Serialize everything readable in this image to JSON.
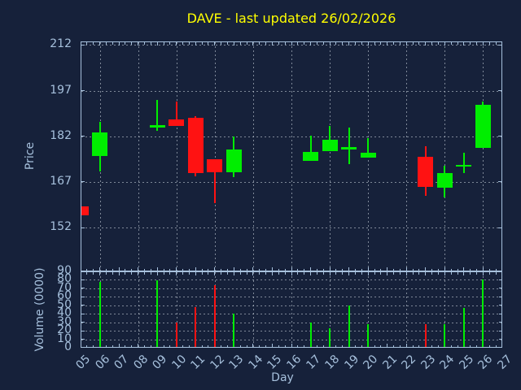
{
  "title": "DAVE - last updated 26/02/2026",
  "colors": {
    "background": "#16213a",
    "axis": "#a6c0dc",
    "grid": "#c3ccd6",
    "title": "#ffff00",
    "up": "#00ee00",
    "down": "#ff1212"
  },
  "chart_data": {
    "type": "candlestick+volume",
    "title": "DAVE - last updated 26/02/2026",
    "xlabel": "Day",
    "xlim": [
      5,
      27
    ],
    "x_ticks": [
      "05",
      "06",
      "07",
      "08",
      "09",
      "10",
      "11",
      "12",
      "13",
      "14",
      "15",
      "16",
      "17",
      "18",
      "19",
      "20",
      "21",
      "22",
      "23",
      "24",
      "25",
      "26",
      "27"
    ],
    "x_gridline_days": [
      6,
      8,
      10,
      12,
      14,
      16,
      18,
      20,
      22,
      24,
      26
    ],
    "price_axis": {
      "label": "Price",
      "ticks": [
        212,
        197,
        182,
        167,
        152
      ],
      "ylim": [
        137.6,
        213.2
      ]
    },
    "volume_axis": {
      "label": "Volume (0000)",
      "ticks": [
        90,
        80,
        70,
        60,
        50,
        40,
        30,
        20,
        10,
        0
      ],
      "ylim": [
        0,
        90
      ]
    },
    "candles": [
      {
        "day": 5,
        "open": 159.0,
        "high": 159.0,
        "low": 156.0,
        "close": 156.0,
        "volume": 0
      },
      {
        "day": 6,
        "open": 175.5,
        "high": 186.7,
        "low": 170.5,
        "close": 183.2,
        "volume": 78
      },
      {
        "day": 9,
        "open": 184.9,
        "high": 194.0,
        "low": 183.7,
        "close": 185.6,
        "volume": 79
      },
      {
        "day": 10,
        "open": 187.5,
        "high": 193.3,
        "low": 185.3,
        "close": 185.3,
        "volume": 30
      },
      {
        "day": 11,
        "open": 188.0,
        "high": 188.6,
        "low": 168.9,
        "close": 169.8,
        "volume": 48
      },
      {
        "day": 12,
        "open": 174.4,
        "high": 174.4,
        "low": 160.0,
        "close": 170.1,
        "volume": 74
      },
      {
        "day": 13,
        "open": 170.2,
        "high": 182.0,
        "low": 168.5,
        "close": 177.6,
        "volume": 40
      },
      {
        "day": 17,
        "open": 174.0,
        "high": 182.2,
        "low": 173.8,
        "close": 177.0,
        "volume": 30
      },
      {
        "day": 18,
        "open": 177.2,
        "high": 185.3,
        "low": 177.2,
        "close": 180.9,
        "volume": 23
      },
      {
        "day": 19,
        "open": 177.6,
        "high": 184.9,
        "low": 172.9,
        "close": 178.4,
        "volume": 50
      },
      {
        "day": 20,
        "open": 175.1,
        "high": 181.5,
        "low": 175.1,
        "close": 176.6,
        "volume": 28
      },
      {
        "day": 23,
        "open": 175.3,
        "high": 178.8,
        "low": 162.4,
        "close": 165.5,
        "volume": 28
      },
      {
        "day": 24,
        "open": 165.1,
        "high": 172.4,
        "low": 162.0,
        "close": 170.0,
        "volume": 28
      },
      {
        "day": 25,
        "open": 172.0,
        "high": 176.6,
        "low": 170.0,
        "close": 172.7,
        "volume": 47
      },
      {
        "day": 26,
        "open": 178.1,
        "high": 193.3,
        "low": 178.1,
        "close": 192.3,
        "volume": 80
      }
    ]
  }
}
